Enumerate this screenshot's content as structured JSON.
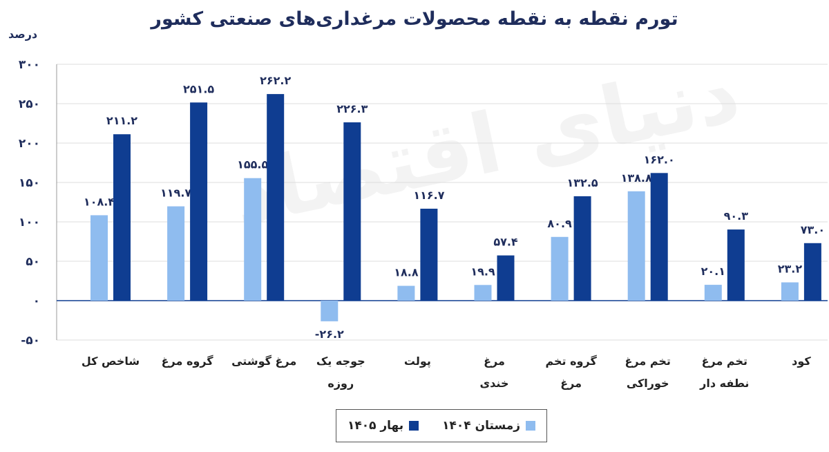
{
  "title": "تورم نقطه به نقطه محصولات مرغداری‌های صنعتی کشور",
  "watermark": "دنیای اقتصاد",
  "chart_data": {
    "type": "bar",
    "ylabel": "درصد",
    "ylim": [
      -50,
      300
    ],
    "yticks": [
      "۳۰۰",
      "۲۵۰",
      "۲۰۰",
      "۱۵۰",
      "۱۰۰",
      "۵۰",
      "۰",
      "-۵۰"
    ],
    "ytick_values": [
      300,
      250,
      200,
      150,
      100,
      50,
      0,
      -50
    ],
    "grid": true,
    "legend_position": "bottom-center",
    "categories": [
      [
        "شاخص کل"
      ],
      [
        "گروه مرغ"
      ],
      [
        "مرغ گوشتی"
      ],
      [
        "جوجه یک",
        "روزه"
      ],
      [
        "پولت"
      ],
      [
        "مرغ",
        "خندی"
      ],
      [
        "گروه تخم",
        "مرغ"
      ],
      [
        "تخم مرغ",
        "خوراکی"
      ],
      [
        "تخم مرغ",
        "نطفه دار"
      ],
      [
        "کود"
      ]
    ],
    "series": [
      {
        "name": "زمستان ۱۴۰۴",
        "color": "#8fbcef",
        "values": [
          108.4,
          119.7,
          155.5,
          -26.2,
          18.8,
          19.9,
          80.9,
          138.8,
          20.1,
          23.2
        ],
        "labels": [
          "۱۰۸.۴",
          "۱۱۹.۷",
          "۱۵۵.۵",
          "-۲۶.۲",
          "۱۸.۸",
          "۱۹.۹",
          "۸۰.۹",
          "۱۳۸.۸",
          "۲۰.۱",
          "۲۳.۲"
        ]
      },
      {
        "name": "بهار ۱۴۰۵",
        "color": "#0f3d91",
        "values": [
          211.2,
          251.5,
          262.2,
          226.3,
          116.7,
          57.4,
          132.5,
          162.0,
          90.3,
          73.0
        ],
        "labels": [
          "۲۱۱.۲",
          "۲۵۱.۵",
          "۲۶۲.۲",
          "۲۲۶.۳",
          "۱۱۶.۷",
          "۵۷.۴",
          "۱۳۲.۵",
          "۱۶۲.۰",
          "۹۰.۳",
          "۷۳.۰"
        ]
      }
    ]
  }
}
